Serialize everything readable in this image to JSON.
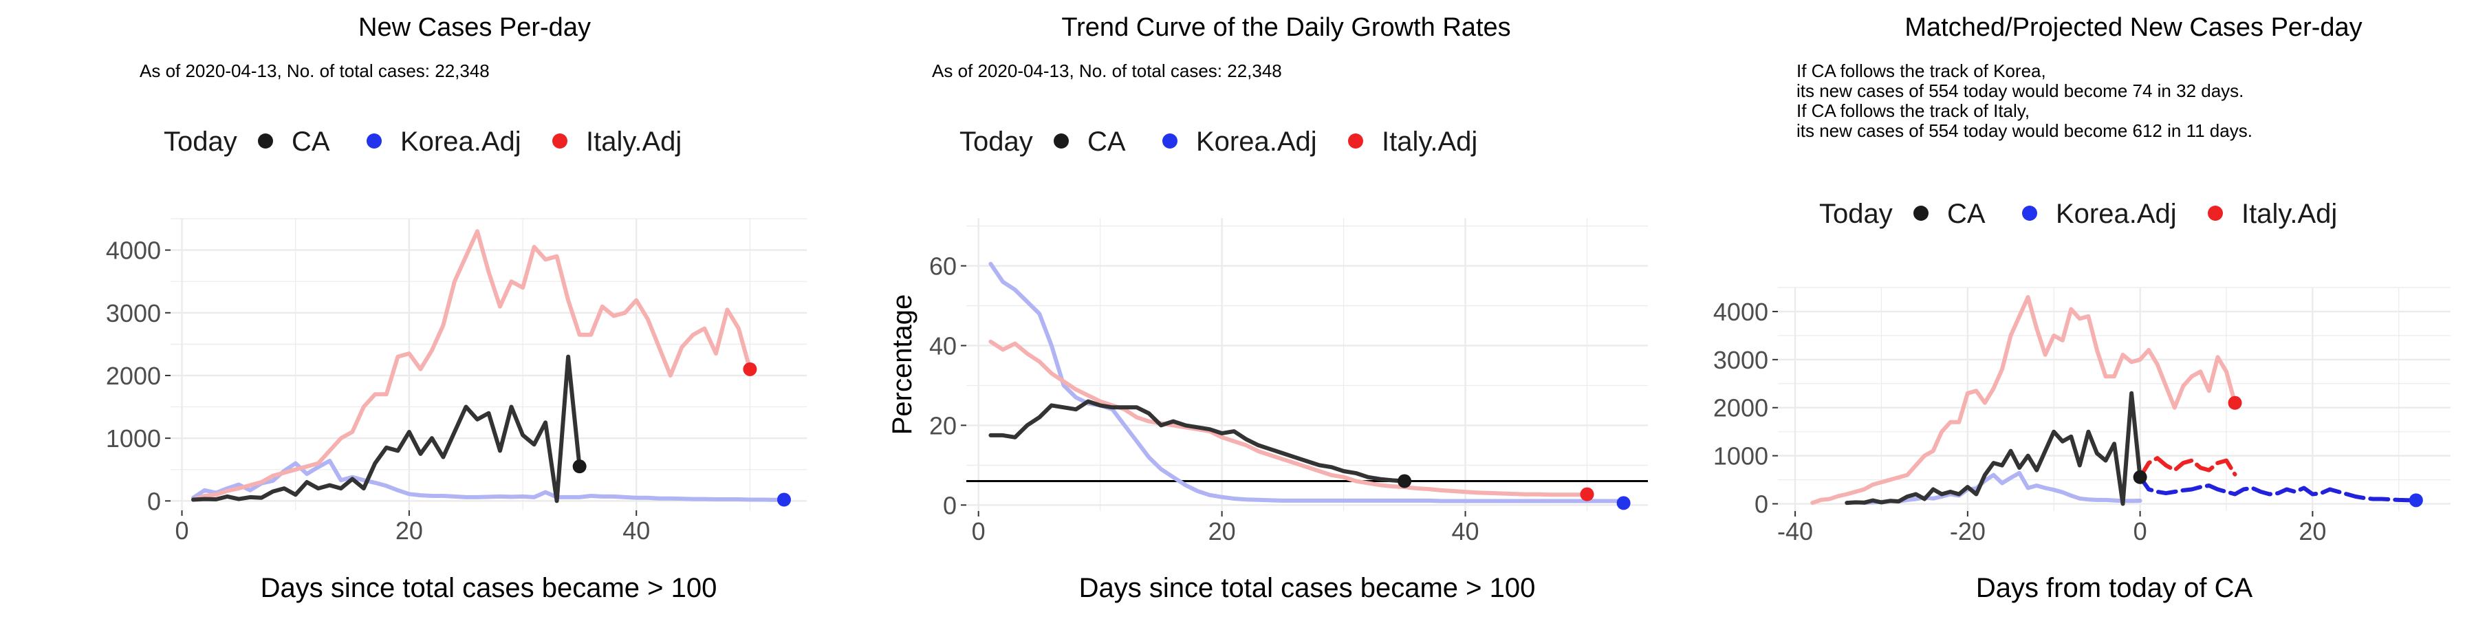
{
  "colors": {
    "ca": "#333333",
    "korea": "#b0b4f4",
    "italy": "#f6b0b0",
    "today_ca": "#1a1a1a",
    "today_korea": "#2233ee",
    "today_italy": "#ee2222",
    "grid": "#ebebeb",
    "proj_korea": "#2222dd",
    "proj_italy": "#ee2222"
  },
  "legend": {
    "today_label": "Today",
    "ca_label": "CA",
    "korea_label": "Korea.Adj",
    "italy_label": "Italy.Adj"
  },
  "chart_data": [
    {
      "type": "line",
      "title": "New Cases Per-day",
      "subtitle_lines": [
        "As of 2020-04-13, No. of total cases: 22,348"
      ],
      "xlabel": "Days since total cases became > 100",
      "ylabel": "",
      "xlim": [
        -1,
        55
      ],
      "ylim": [
        -150,
        4500
      ],
      "xticks": [
        0,
        20,
        40
      ],
      "yticks": [
        0,
        1000,
        2000,
        3000,
        4000
      ],
      "x_tick_labels": [
        "0",
        "20",
        "40"
      ],
      "y_tick_labels": [
        "0",
        "1000",
        "2000",
        "3000",
        "4000"
      ],
      "series": [
        {
          "name": "Korea.Adj",
          "color_key": "korea",
          "x": [
            1,
            2,
            3,
            4,
            5,
            6,
            7,
            8,
            9,
            10,
            11,
            12,
            13,
            14,
            15,
            16,
            17,
            18,
            19,
            20,
            21,
            22,
            23,
            24,
            25,
            26,
            27,
            28,
            29,
            30,
            31,
            32,
            33,
            34,
            35,
            36,
            37,
            38,
            39,
            40,
            41,
            42,
            43,
            44,
            45,
            46,
            47,
            48,
            49,
            50,
            51,
            52,
            53
          ],
          "y": [
            50,
            170,
            130,
            200,
            260,
            170,
            280,
            320,
            480,
            600,
            430,
            540,
            640,
            330,
            380,
            330,
            290,
            240,
            170,
            110,
            90,
            80,
            80,
            70,
            60,
            60,
            65,
            70,
            65,
            70,
            60,
            140,
            60,
            60,
            60,
            80,
            70,
            70,
            60,
            50,
            50,
            40,
            40,
            35,
            30,
            30,
            25,
            25,
            25,
            20,
            20,
            18,
            20
          ]
        },
        {
          "name": "Italy.Adj",
          "color_key": "italy",
          "x": [
            1,
            2,
            3,
            4,
            5,
            6,
            7,
            8,
            9,
            10,
            11,
            12,
            13,
            14,
            15,
            16,
            17,
            18,
            19,
            20,
            21,
            22,
            23,
            24,
            25,
            26,
            27,
            28,
            29,
            30,
            31,
            32,
            33,
            34,
            35,
            36,
            37,
            38,
            39,
            40,
            41,
            42,
            43,
            44,
            45,
            46,
            47,
            48,
            49,
            50
          ],
          "y": [
            20,
            80,
            100,
            160,
            200,
            250,
            300,
            400,
            450,
            500,
            550,
            600,
            800,
            1000,
            1100,
            1500,
            1700,
            1700,
            2300,
            2350,
            2100,
            2400,
            2800,
            3500,
            3900,
            4300,
            3650,
            3100,
            3500,
            3400,
            4050,
            3850,
            3900,
            3200,
            2650,
            2650,
            3100,
            2950,
            3000,
            3200,
            2900,
            2450,
            2000,
            2450,
            2650,
            2750,
            2350,
            3050,
            2750,
            2100
          ]
        },
        {
          "name": "CA",
          "color_key": "ca",
          "x": [
            1,
            2,
            3,
            4,
            5,
            6,
            7,
            8,
            9,
            10,
            11,
            12,
            13,
            14,
            15,
            16,
            17,
            18,
            19,
            20,
            21,
            22,
            23,
            24,
            25,
            26,
            27,
            28,
            29,
            30,
            31,
            32,
            33,
            34,
            35
          ],
          "y": [
            20,
            30,
            25,
            70,
            30,
            60,
            50,
            150,
            200,
            100,
            300,
            200,
            250,
            200,
            350,
            200,
            600,
            850,
            800,
            1100,
            750,
            1000,
            700,
            1100,
            1500,
            1300,
            1400,
            800,
            1500,
            1050,
            900,
            1250,
            0,
            2300,
            550
          ]
        }
      ],
      "today_points": [
        {
          "name": "CA",
          "x": 35,
          "y": 550,
          "color_key": "today_ca"
        },
        {
          "name": "Korea.Adj",
          "x": 53,
          "y": 20,
          "color_key": "today_korea"
        },
        {
          "name": "Italy.Adj",
          "x": 50,
          "y": 2100,
          "color_key": "today_italy"
        }
      ]
    },
    {
      "type": "line",
      "title": "Trend Curve of the Daily Growth Rates",
      "subtitle_lines": [
        "As of 2020-04-13, No. of total cases: 22,348"
      ],
      "xlabel": "Days since total cases became > 100",
      "ylabel": "Percentage",
      "xlim": [
        -1,
        55
      ],
      "ylim": [
        -1.5,
        72
      ],
      "xticks": [
        0,
        20,
        40
      ],
      "yticks": [
        0,
        20,
        40,
        60
      ],
      "x_tick_labels": [
        "0",
        "20",
        "40"
      ],
      "y_tick_labels": [
        "0",
        "20",
        "40",
        "60"
      ],
      "hline": 6,
      "series": [
        {
          "name": "Korea.Adj",
          "color_key": "korea",
          "x": [
            1,
            2,
            3,
            4,
            5,
            6,
            7,
            8,
            9,
            10,
            11,
            12,
            13,
            14,
            15,
            16,
            17,
            18,
            19,
            20,
            21,
            22,
            23,
            24,
            25,
            26,
            27,
            28,
            29,
            30,
            31,
            32,
            33,
            34,
            35,
            36,
            37,
            38,
            39,
            40,
            41,
            42,
            43,
            44,
            45,
            46,
            47,
            48,
            49,
            50,
            51,
            52,
            53
          ],
          "y": [
            60.5,
            56,
            54,
            51,
            48,
            40,
            30,
            27,
            25.5,
            25,
            24,
            20,
            16,
            12,
            9,
            7,
            5,
            3.5,
            2.5,
            2,
            1.6,
            1.4,
            1.3,
            1.2,
            1.1,
            1.1,
            1.1,
            1.1,
            1.1,
            1.1,
            1.1,
            1.1,
            1.1,
            1.1,
            1.1,
            1.1,
            1.1,
            1,
            1,
            1,
            1,
            1,
            1,
            1,
            1,
            1,
            1,
            1,
            1,
            1,
            1,
            1,
            1
          ]
        },
        {
          "name": "Italy.Adj",
          "color_key": "italy",
          "x": [
            1,
            2,
            3,
            4,
            5,
            6,
            7,
            8,
            9,
            10,
            11,
            12,
            13,
            14,
            15,
            16,
            17,
            18,
            19,
            20,
            21,
            22,
            23,
            24,
            25,
            26,
            27,
            28,
            29,
            30,
            31,
            32,
            33,
            34,
            35,
            36,
            37,
            38,
            39,
            40,
            41,
            42,
            43,
            44,
            45,
            46,
            47,
            48,
            49,
            50
          ],
          "y": [
            41,
            39,
            40.5,
            38,
            36,
            33,
            31,
            29,
            27.5,
            26,
            25,
            24,
            22,
            21,
            20.5,
            20,
            19.5,
            19,
            18.5,
            17,
            16,
            15,
            13.5,
            12.5,
            11.5,
            10.5,
            9.5,
            8.5,
            7.5,
            7,
            6,
            5.5,
            5,
            4.7,
            4.5,
            4.2,
            4,
            3.7,
            3.5,
            3.3,
            3.1,
            3,
            2.9,
            2.8,
            2.7,
            2.7,
            2.6,
            2.6,
            2.6,
            2.6
          ]
        },
        {
          "name": "CA",
          "color_key": "ca",
          "x": [
            1,
            2,
            3,
            4,
            5,
            6,
            7,
            8,
            9,
            10,
            11,
            12,
            13,
            14,
            15,
            16,
            17,
            18,
            19,
            20,
            21,
            22,
            23,
            24,
            25,
            26,
            27,
            28,
            29,
            30,
            31,
            32,
            33,
            34,
            35
          ],
          "y": [
            17.5,
            17.5,
            17,
            20,
            22,
            25,
            24.5,
            24,
            26,
            25,
            24.5,
            24.5,
            24.5,
            23,
            20,
            21,
            20,
            19.5,
            19,
            18,
            18.5,
            16.5,
            15,
            14,
            13,
            12,
            11,
            10,
            9.5,
            8.5,
            8,
            7,
            6.5,
            6.2,
            6
          ]
        }
      ],
      "today_points": [
        {
          "name": "CA",
          "x": 35,
          "y": 6,
          "color_key": "today_ca"
        },
        {
          "name": "Korea.Adj",
          "x": 53,
          "y": 0.5,
          "color_key": "today_korea"
        },
        {
          "name": "Italy.Adj",
          "x": 50,
          "y": 2.7,
          "color_key": "today_italy"
        }
      ]
    },
    {
      "type": "line",
      "title": "Matched/Projected New Cases Per-day",
      "subtitle_lines": [
        "If CA follows the track of Korea,",
        "its new cases of 554 today would become 74 in 32 days.",
        "If CA follows the track of Italy,",
        "its new cases of 554 today would become 612 in 11 days."
      ],
      "xlabel": "Days from today of CA",
      "ylabel": "",
      "xlim": [
        -42,
        36
      ],
      "ylim": [
        -150,
        4500
      ],
      "xticks": [
        -40,
        -20,
        0,
        20
      ],
      "yticks": [
        0,
        1000,
        2000,
        3000,
        4000
      ],
      "x_tick_labels": [
        "-40",
        "-20",
        "0",
        "20"
      ],
      "y_tick_labels": [
        "0",
        "1000",
        "2000",
        "3000",
        "4000"
      ],
      "series": [
        {
          "name": "Italy.Adj (matched)",
          "color_key": "italy",
          "x": [
            -38,
            -37,
            -36,
            -35,
            -34,
            -33,
            -32,
            -31,
            -30,
            -29,
            -28,
            -27,
            -26,
            -25,
            -24,
            -23,
            -22,
            -21,
            -20,
            -19,
            -18,
            -17,
            -16,
            -15,
            -14,
            -13,
            -12,
            -11,
            -10,
            -9,
            -8,
            -7,
            -6,
            -5,
            -4,
            -3,
            -2,
            -1,
            0,
            1,
            2,
            3,
            4,
            5,
            6,
            7,
            8,
            9,
            10,
            11
          ],
          "y": [
            20,
            80,
            100,
            160,
            200,
            250,
            300,
            400,
            450,
            500,
            550,
            600,
            800,
            1000,
            1100,
            1500,
            1700,
            1700,
            2300,
            2350,
            2100,
            2400,
            2800,
            3500,
            3900,
            4300,
            3650,
            3100,
            3500,
            3400,
            4050,
            3850,
            3900,
            3200,
            2650,
            2650,
            3100,
            2950,
            3000,
            3200,
            2900,
            2450,
            2000,
            2450,
            2650,
            2750,
            2350,
            3050,
            2750,
            2100
          ]
        },
        {
          "name": "Korea.Adj (matched)",
          "color_key": "korea",
          "x": [
            -32,
            -31,
            -30,
            -29,
            -28,
            -27,
            -26,
            -25,
            -24,
            -23,
            -22,
            -21,
            -20,
            -19,
            -18,
            -17,
            -16,
            -15,
            -14,
            -13,
            -12,
            -11,
            -10,
            -9,
            -8,
            -7,
            -6,
            -5,
            -4,
            -3,
            -2,
            -1,
            0
          ],
          "y": [
            20,
            30,
            40,
            60,
            50,
            80,
            100,
            130,
            110,
            150,
            200,
            170,
            300,
            320,
            480,
            600,
            430,
            540,
            640,
            330,
            380,
            330,
            290,
            240,
            170,
            110,
            90,
            80,
            80,
            70,
            60,
            60,
            65
          ]
        },
        {
          "name": "CA",
          "color_key": "ca",
          "x": [
            -34,
            -33,
            -32,
            -31,
            -30,
            -29,
            -28,
            -27,
            -26,
            -25,
            -24,
            -23,
            -22,
            -21,
            -20,
            -19,
            -18,
            -17,
            -16,
            -15,
            -14,
            -13,
            -12,
            -11,
            -10,
            -9,
            -8,
            -7,
            -6,
            -5,
            -4,
            -3,
            -2,
            -1,
            0
          ],
          "y": [
            20,
            30,
            25,
            70,
            30,
            60,
            50,
            150,
            200,
            100,
            300,
            200,
            250,
            200,
            350,
            200,
            600,
            850,
            800,
            1100,
            750,
            1000,
            700,
            1100,
            1500,
            1300,
            1400,
            800,
            1500,
            1050,
            900,
            1250,
            0,
            2300,
            550
          ]
        },
        {
          "name": "Korea.Adj (projected)",
          "color_key": "proj_korea",
          "dashed": true,
          "x": [
            0,
            1,
            2,
            3,
            4,
            5,
            6,
            7,
            8,
            9,
            10,
            11,
            12,
            13,
            14,
            15,
            16,
            17,
            18,
            19,
            20,
            21,
            22,
            23,
            24,
            25,
            26,
            27,
            28,
            29,
            30,
            31,
            32
          ],
          "y": [
            554,
            300,
            250,
            220,
            250,
            280,
            300,
            350,
            380,
            300,
            250,
            200,
            300,
            330,
            250,
            200,
            220,
            300,
            250,
            330,
            200,
            220,
            300,
            250,
            200,
            150,
            120,
            100,
            100,
            90,
            80,
            75,
            74
          ]
        },
        {
          "name": "Italy.Adj (projected)",
          "color_key": "proj_italy",
          "dashed": true,
          "x": [
            0,
            1,
            2,
            3,
            4,
            5,
            6,
            7,
            8,
            9,
            10,
            11
          ],
          "y": [
            554,
            850,
            950,
            800,
            700,
            850,
            900,
            750,
            700,
            850,
            900,
            612
          ]
        }
      ],
      "today_points": [
        {
          "name": "CA",
          "x": 0,
          "y": 554,
          "color_key": "today_ca"
        },
        {
          "name": "Korea.Adj",
          "x": 32,
          "y": 74,
          "color_key": "today_korea"
        },
        {
          "name": "Italy.Adj",
          "x": 11,
          "y": 2100,
          "color_key": "today_italy"
        }
      ]
    }
  ]
}
